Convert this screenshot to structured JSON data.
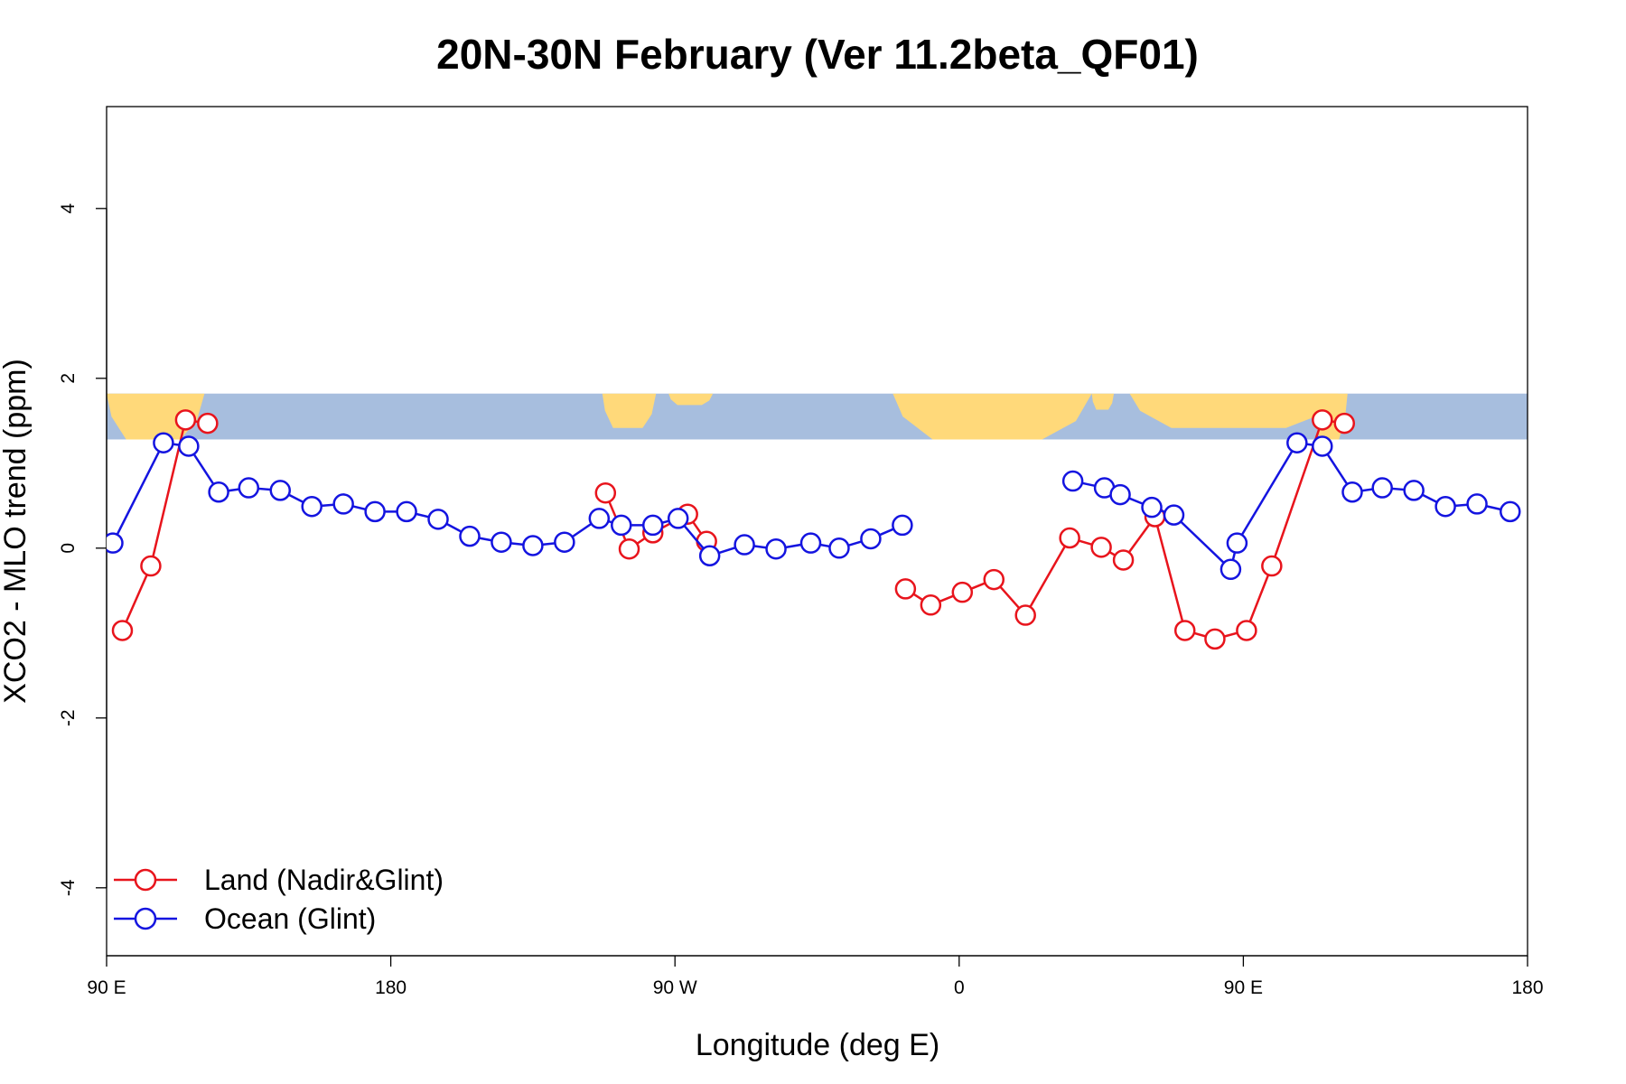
{
  "chart_data": {
    "type": "line",
    "title": "20N-30N February (Ver 11.2beta_QF01)",
    "xlabel": "Longitude (deg E)",
    "ylabel": "XCO2 - MLO trend (ppm)",
    "xlim": [
      90,
      540
    ],
    "ylim": [
      -4.8,
      5.2
    ],
    "x_ticks": [
      {
        "value": 90,
        "label": "90 E"
      },
      {
        "value": 180,
        "label": "180"
      },
      {
        "value": 270,
        "label": "90 W"
      },
      {
        "value": 360,
        "label": "0"
      },
      {
        "value": 450,
        "label": "90 E"
      },
      {
        "value": 540,
        "label": "180"
      }
    ],
    "y_ticks": [
      {
        "value": -4,
        "label": "-4"
      },
      {
        "value": -2,
        "label": "-2"
      },
      {
        "value": 0,
        "label": "0"
      },
      {
        "value": 2,
        "label": "2"
      },
      {
        "value": 4,
        "label": "4"
      }
    ],
    "map_strip": {
      "y_min": 1.28,
      "y_max": 1.82,
      "ocean_color": "#a7bede",
      "land_color": "#ffd97a"
    },
    "legend": {
      "position": "bottom-left"
    },
    "series": [
      {
        "name": "Land (Nadir&Glint)",
        "color": "#e8141c",
        "segments": [
          {
            "x": [
              95,
              104,
              115,
              122
            ],
            "y": [
              -0.97,
              -0.21,
              1.51,
              1.47
            ]
          },
          {
            "x": [
              248,
              255.5,
              263,
              274,
              280
            ],
            "y": [
              0.65,
              -0.01,
              0.18,
              0.4,
              0.08
            ]
          },
          {
            "x": [
              343,
              351,
              361,
              371,
              381,
              395,
              405,
              412,
              422,
              431.5,
              441,
              451,
              459,
              475,
              482
            ],
            "y": [
              -0.48,
              -0.67,
              -0.52,
              -0.37,
              -0.79,
              0.12,
              0.01,
              -0.14,
              0.37,
              -0.97,
              -1.07,
              -0.97,
              -0.21,
              1.51,
              1.47
            ]
          }
        ]
      },
      {
        "name": "Ocean (Glint)",
        "color": "#1414e0",
        "segments": [
          {
            "x": [
              92,
              108,
              116,
              125.5,
              135,
              145,
              155,
              165,
              175,
              185,
              195,
              205,
              215,
              225,
              235,
              246,
              253,
              263,
              271,
              281,
              292,
              302,
              313,
              322,
              332,
              342
            ],
            "y": [
              0.06,
              1.24,
              1.2,
              0.66,
              0.71,
              0.68,
              0.49,
              0.52,
              0.43,
              0.43,
              0.34,
              0.14,
              0.07,
              0.03,
              0.07,
              0.35,
              0.27,
              0.27,
              0.35,
              -0.09,
              0.04,
              -0.01,
              0.06,
              0,
              0.11,
              0.27
            ]
          },
          {
            "x": [
              396,
              406,
              411,
              421,
              428,
              446,
              448,
              467,
              475,
              484.5,
              494,
              504,
              514,
              524,
              534.5
            ],
            "y": [
              0.79,
              0.71,
              0.63,
              0.48,
              0.39,
              -0.25,
              0.06,
              1.24,
              1.2,
              0.66,
              0.71,
              0.68,
              0.49,
              0.52,
              0.43
            ]
          }
        ]
      }
    ]
  }
}
